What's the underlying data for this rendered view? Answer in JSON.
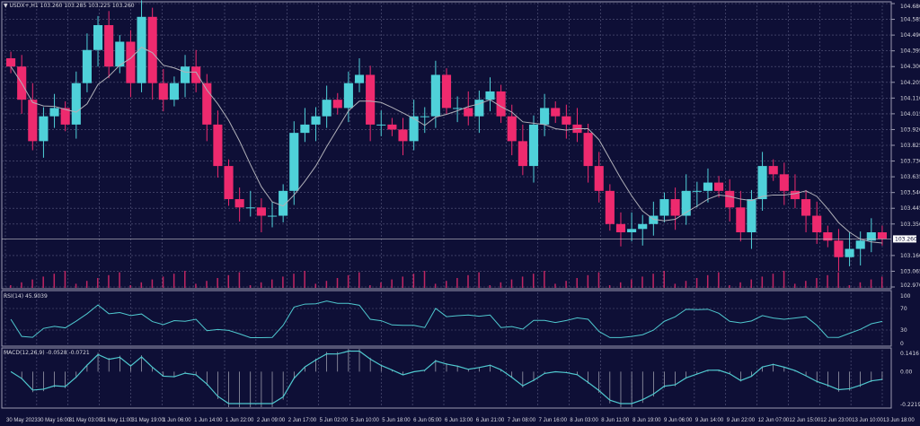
{
  "header": {
    "symbol": "USDX+,H1",
    "ohlc": "103.260 103.285 103.225 103.260"
  },
  "rsi_label": "RSI(14) 45.9039",
  "macd_label": "MACD(12,26,9) -0.0528 -0.0721",
  "colors": {
    "background": "#0e0f36",
    "bull": "#4fd1d9",
    "bear": "#ee2a6e",
    "ma": "#b0b0b8",
    "indicator": "#4fc8cf",
    "grid": "#5a5b80"
  },
  "chart_data": {
    "type": "candlestick",
    "price_axis": {
      "ticks": [
        "104.680",
        "104.585",
        "104.490",
        "104.395",
        "104.300",
        "104.205",
        "104.110",
        "104.015",
        "103.920",
        "103.825",
        "103.730",
        "103.635",
        "103.540",
        "103.445",
        "103.350",
        "103.160",
        "103.065",
        "102.970"
      ],
      "ylim": [
        102.97,
        104.68
      ],
      "current_price": "103.260"
    },
    "rsi_axis": {
      "ticks": [
        "100",
        "70",
        "30",
        "0"
      ],
      "ylim": [
        0,
        100
      ]
    },
    "macd_axis": {
      "ticks": [
        "0.1416",
        "0.00",
        "-0.2219"
      ],
      "ylim": [
        -0.2219,
        0.1416
      ]
    },
    "time_axis": [
      "30 May 2023",
      "30 May 16:00",
      "31 May 03:00",
      "31 May 11:00",
      "31 May 19:00",
      "1 Jun 06:00",
      "1 Jun 14:00",
      "1 Jun 22:00",
      "2 Jun 09:00",
      "2 Jun 17:00",
      "5 Jun 02:00",
      "5 Jun 10:00",
      "5 Jun 18:00",
      "6 Jun 05:00",
      "6 Jun 13:00",
      "6 Jun 21:00",
      "7 Jun 08:00",
      "7 Jun 16:00",
      "8 Jun 03:00",
      "8 Jun 11:00",
      "8 Jun 19:00",
      "9 Jun 06:00",
      "9 Jun 14:00",
      "9 Jun 22:00",
      "12 Jun 07:00",
      "12 Jun 15:00",
      "12 Jun 23:00",
      "13 Jun 10:00",
      "13 Jun 18:00"
    ],
    "closes": [
      104.3,
      104.1,
      103.85,
      104.0,
      104.05,
      103.95,
      104.2,
      104.4,
      104.55,
      104.3,
      104.45,
      104.2,
      104.6,
      104.2,
      104.1,
      104.2,
      104.3,
      104.2,
      103.95,
      103.7,
      103.5,
      103.45,
      103.45,
      103.4,
      103.4,
      103.55,
      103.9,
      103.95,
      104.0,
      104.1,
      104.05,
      104.2,
      104.25,
      103.95,
      103.95,
      103.92,
      103.85,
      104.0,
      104.0,
      104.25,
      104.05,
      104.05,
      104.0,
      104.1,
      104.15,
      104.0,
      103.85,
      103.7,
      103.95,
      104.05,
      104.0,
      103.95,
      103.9,
      103.7,
      103.55,
      103.35,
      103.3,
      103.32,
      103.35,
      103.4,
      103.5,
      103.4,
      103.55,
      103.55,
      103.6,
      103.55,
      103.45,
      103.3,
      103.5,
      103.7,
      103.65,
      103.55,
      103.5,
      103.4,
      103.3,
      103.25,
      103.15,
      103.2,
      103.25,
      103.3,
      103.26
    ]
  }
}
